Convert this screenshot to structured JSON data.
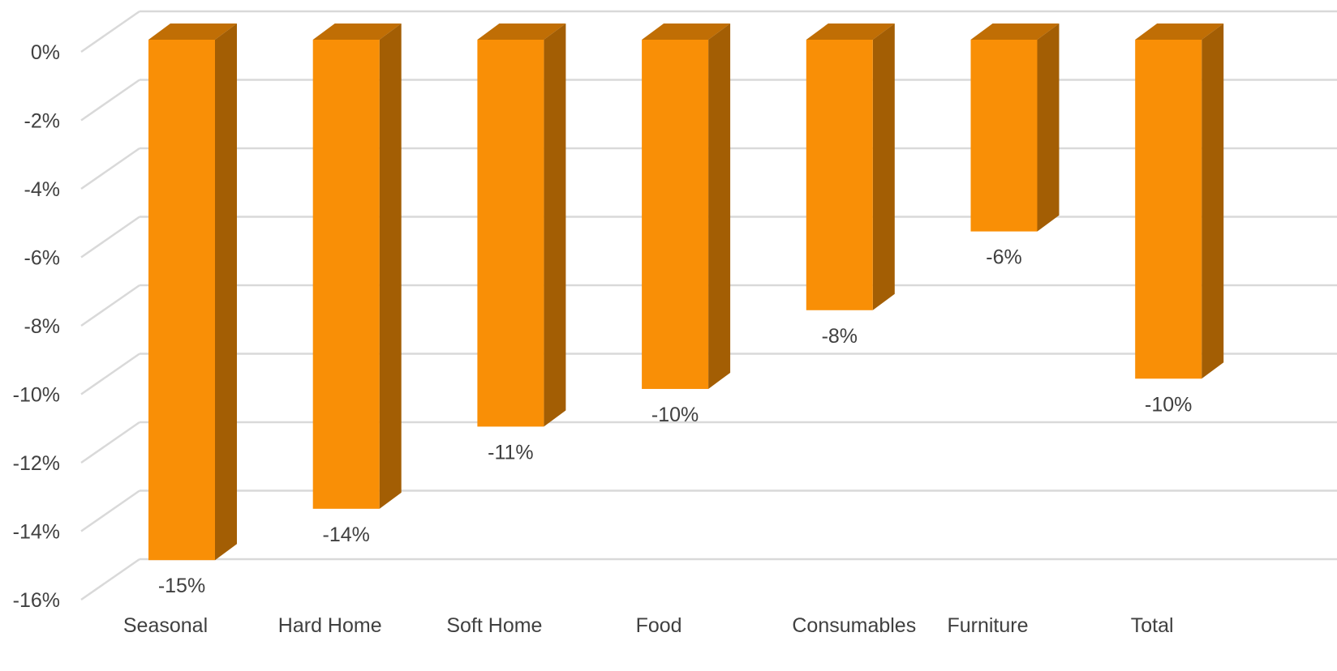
{
  "colors": {
    "bar_front": "#F98F06",
    "bar_side": "#A35E04",
    "bar_top": "#C06E05",
    "gridline": "#D9D9D9",
    "text": "#404040"
  },
  "chart_data": {
    "type": "bar",
    "style": "3d-column",
    "title": "",
    "xlabel": "",
    "ylabel": "",
    "categories": [
      "Seasonal",
      "Hard Home",
      "Soft Home",
      "Food",
      "Consumables",
      "Furniture",
      "Total"
    ],
    "values": [
      -15.2,
      -13.7,
      -11.3,
      -10.2,
      -7.9,
      -5.6,
      -9.9
    ],
    "data_labels": [
      "-15%",
      "-14%",
      "-11%",
      "-10%",
      "-8%",
      "-6%",
      "-10%"
    ],
    "ylim": [
      -16,
      0
    ],
    "y_ticks": [
      0,
      -2,
      -4,
      -6,
      -8,
      -10,
      -12,
      -14,
      -16
    ],
    "y_tick_labels": [
      "0%",
      "-2%",
      "-4%",
      "-6%",
      "-8%",
      "-10%",
      "-12%",
      "-14%",
      "-16%"
    ],
    "grid": true,
    "legend": "none"
  }
}
